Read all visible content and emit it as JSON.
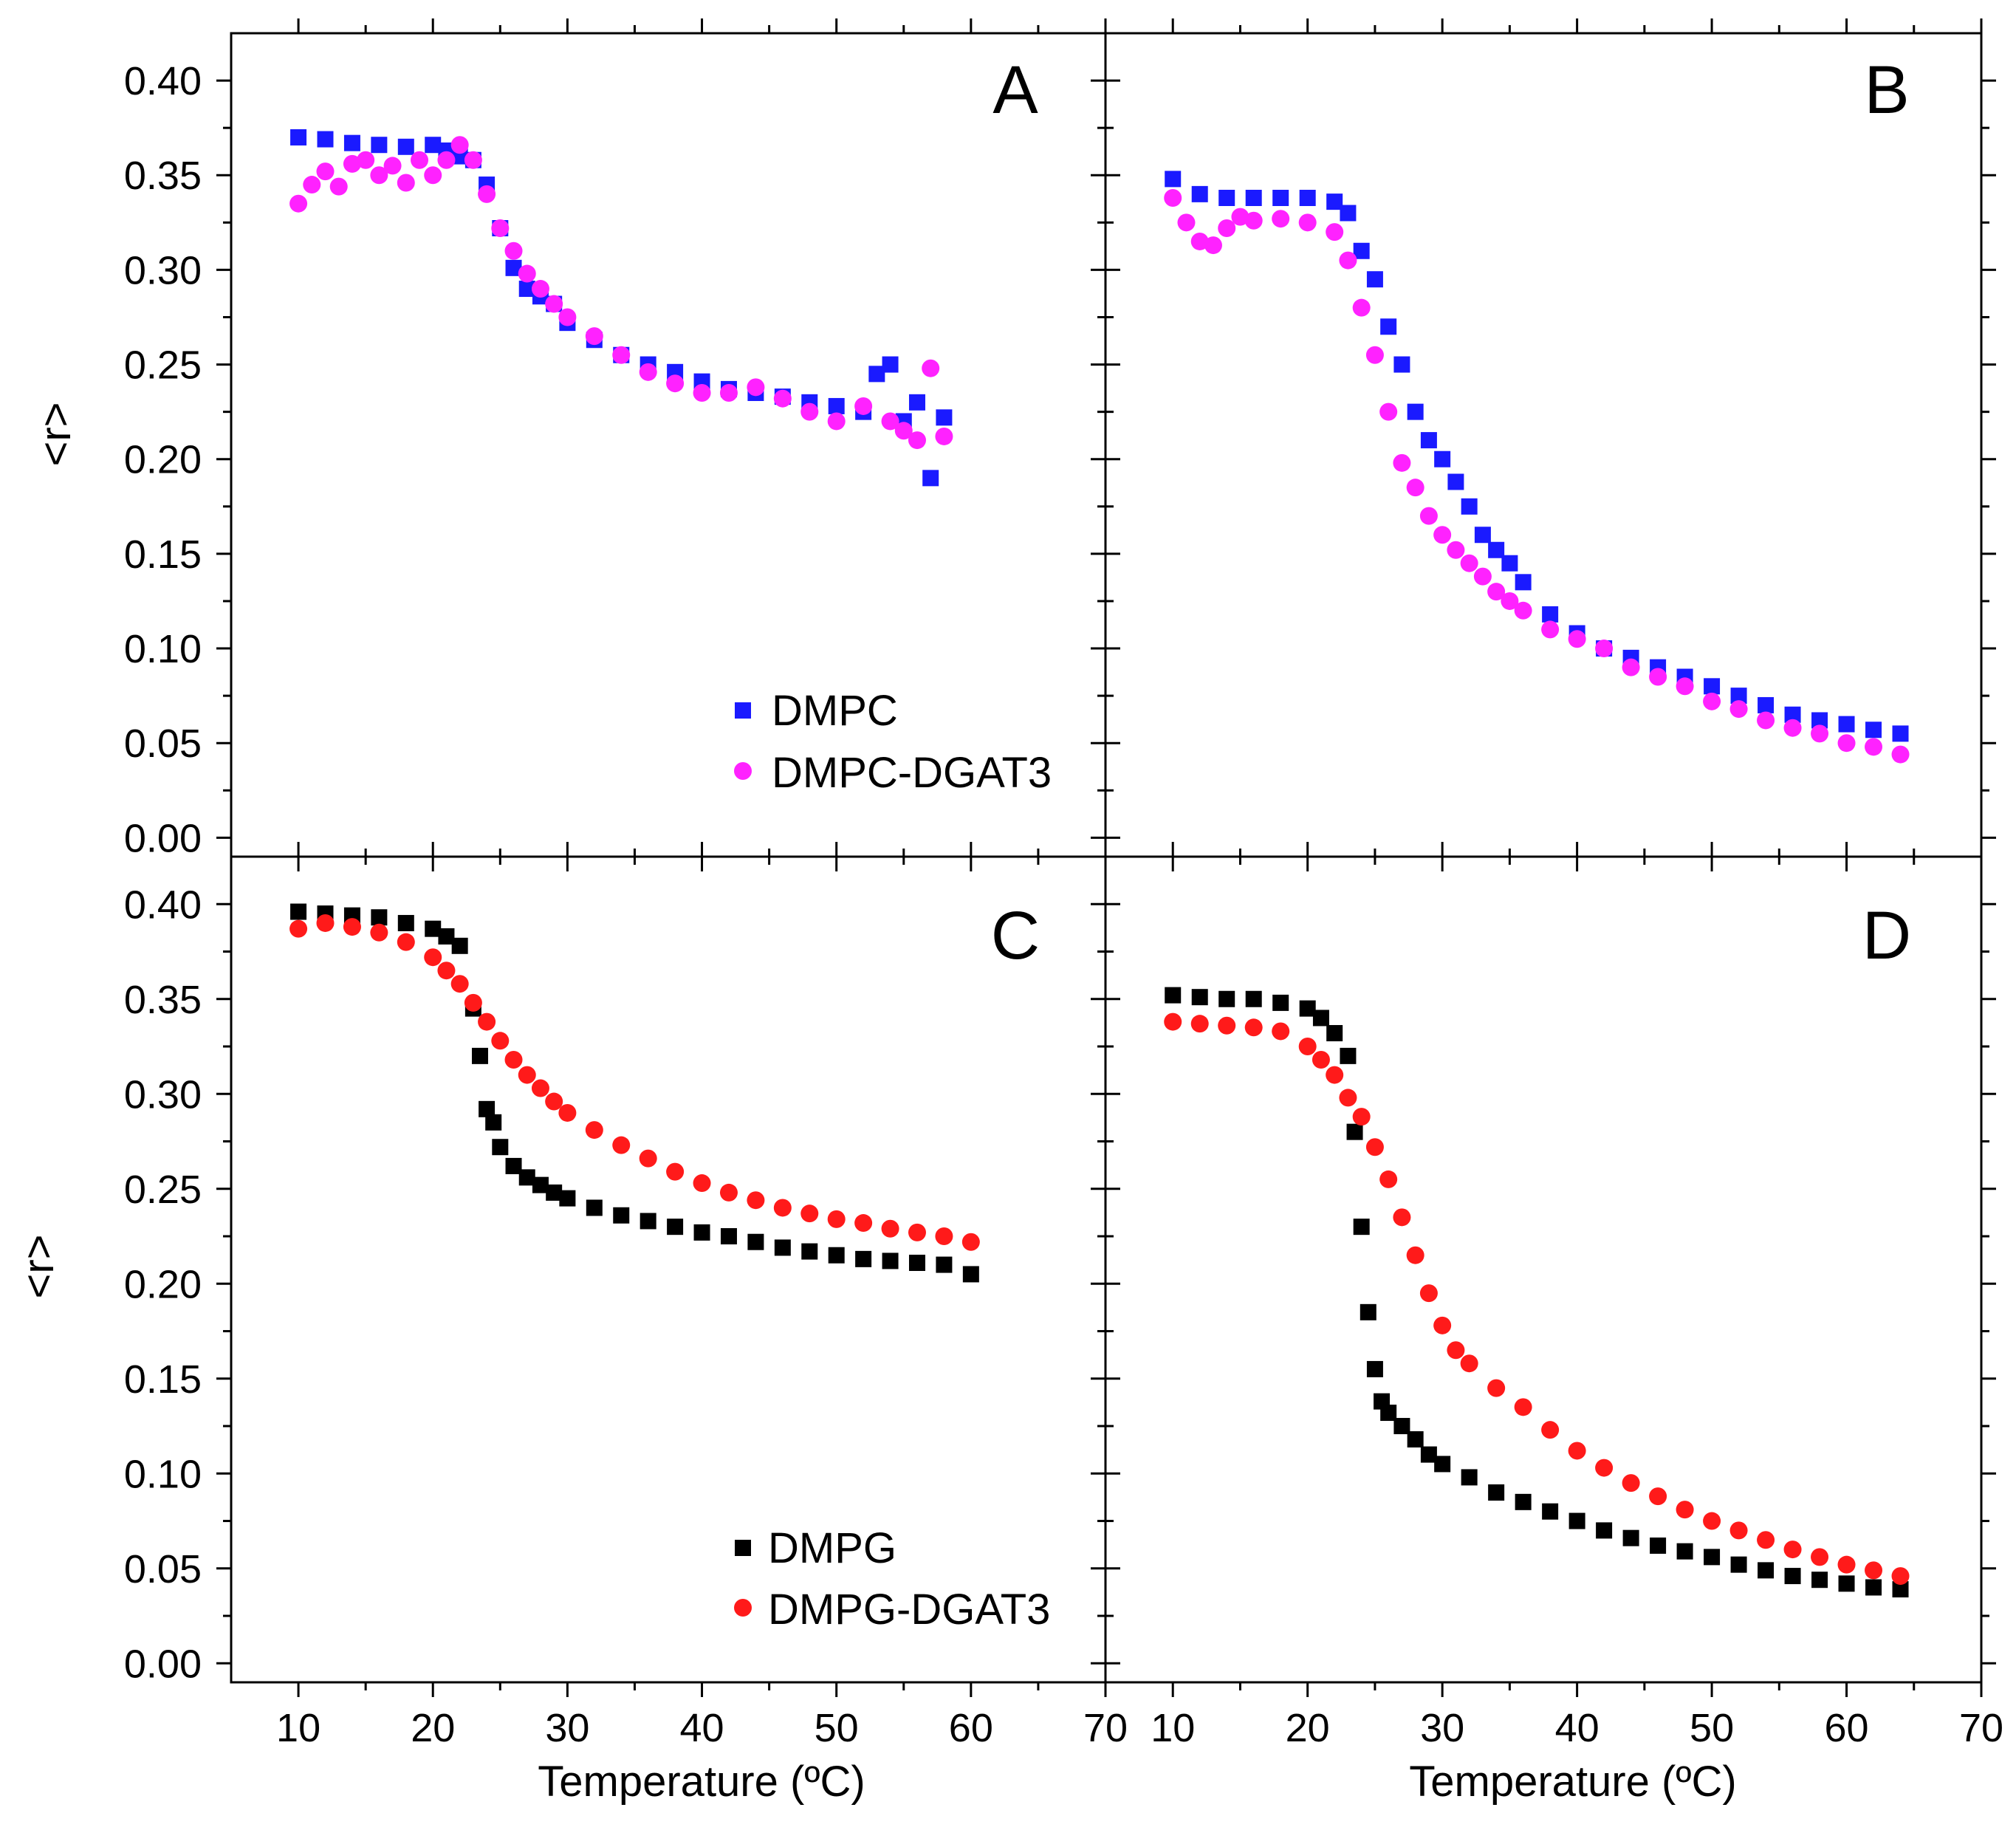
{
  "figure": {
    "x_axis_title": "Temperature (ºC)",
    "y_axis_title": "<r>",
    "x_tick_labels": [
      "10",
      "20",
      "30",
      "40",
      "50",
      "60",
      "70"
    ],
    "y_tick_labels": [
      "0.00",
      "0.05",
      "0.10",
      "0.15",
      "0.20",
      "0.25",
      "0.30",
      "0.35",
      "0.40"
    ],
    "colors": {
      "DMPC": "#1a1aff",
      "DMPC-DGAT3": "#ff22ff",
      "DMPG": "#000000",
      "DMPG-DGAT3": "#ff1a1a"
    }
  },
  "chart_data": [
    {
      "panel": "A",
      "type": "scatter",
      "xlabel": "",
      "ylabel": "<r>",
      "xlim": [
        5,
        70
      ],
      "ylim": [
        -0.01,
        0.425
      ],
      "legend": "bottom-right",
      "series": [
        {
          "name": "DMPC",
          "marker": "square",
          "color": "#1a1aff",
          "x": [
            10,
            12,
            14,
            16,
            18,
            20,
            21,
            22,
            23,
            24,
            25,
            26,
            27,
            28,
            29,
            30,
            32,
            34,
            36,
            38,
            40,
            42,
            44,
            46,
            48,
            50,
            52,
            53,
            54,
            55,
            56,
            57,
            58
          ],
          "y": [
            0.37,
            0.369,
            0.367,
            0.366,
            0.365,
            0.366,
            0.363,
            0.36,
            0.358,
            0.345,
            0.322,
            0.301,
            0.29,
            0.286,
            0.282,
            0.272,
            0.263,
            0.255,
            0.25,
            0.246,
            0.241,
            0.237,
            0.235,
            0.233,
            0.23,
            0.228,
            0.225,
            0.245,
            0.25,
            0.22,
            0.23,
            0.19,
            0.222
          ]
        },
        {
          "name": "DMPC-DGAT3",
          "marker": "circle",
          "color": "#ff22ff",
          "x": [
            10,
            11,
            12,
            13,
            14,
            15,
            16,
            17,
            18,
            19,
            20,
            21,
            22,
            23,
            24,
            25,
            26,
            27,
            28,
            29,
            30,
            32,
            34,
            36,
            38,
            40,
            42,
            44,
            46,
            48,
            50,
            52,
            54,
            55,
            56,
            57,
            58
          ],
          "y": [
            0.335,
            0.345,
            0.352,
            0.344,
            0.356,
            0.358,
            0.35,
            0.355,
            0.346,
            0.358,
            0.35,
            0.358,
            0.366,
            0.358,
            0.34,
            0.322,
            0.31,
            0.298,
            0.29,
            0.282,
            0.275,
            0.265,
            0.255,
            0.246,
            0.24,
            0.235,
            0.235,
            0.238,
            0.232,
            0.225,
            0.22,
            0.228,
            0.22,
            0.215,
            0.21,
            0.248,
            0.212
          ]
        }
      ]
    },
    {
      "panel": "B",
      "type": "scatter",
      "xlabel": "",
      "ylabel": "",
      "xlim": [
        5,
        70
      ],
      "ylim": [
        -0.01,
        0.425
      ],
      "series": [
        {
          "name": "DMPC",
          "marker": "square",
          "color": "#1a1aff",
          "x": [
            10,
            12,
            14,
            16,
            18,
            20,
            22,
            23,
            24,
            25,
            26,
            27,
            28,
            29,
            30,
            31,
            32,
            33,
            34,
            35,
            36,
            38,
            40,
            42,
            44,
            46,
            48,
            50,
            52,
            54,
            56,
            58,
            60,
            62,
            64
          ],
          "y": [
            0.348,
            0.34,
            0.338,
            0.338,
            0.338,
            0.338,
            0.336,
            0.33,
            0.31,
            0.295,
            0.27,
            0.25,
            0.225,
            0.21,
            0.2,
            0.188,
            0.175,
            0.16,
            0.152,
            0.145,
            0.135,
            0.118,
            0.108,
            0.1,
            0.095,
            0.09,
            0.085,
            0.08,
            0.075,
            0.07,
            0.065,
            0.062,
            0.06,
            0.057,
            0.055
          ]
        },
        {
          "name": "DMPC-DGAT3",
          "marker": "circle",
          "color": "#ff22ff",
          "x": [
            10,
            11,
            12,
            13,
            14,
            15,
            16,
            18,
            20,
            22,
            23,
            24,
            25,
            26,
            27,
            28,
            29,
            30,
            31,
            32,
            33,
            34,
            35,
            36,
            38,
            40,
            42,
            44,
            46,
            48,
            50,
            52,
            54,
            56,
            58,
            60,
            62,
            64
          ],
          "y": [
            0.338,
            0.325,
            0.315,
            0.313,
            0.322,
            0.328,
            0.326,
            0.327,
            0.325,
            0.32,
            0.305,
            0.28,
            0.255,
            0.225,
            0.198,
            0.185,
            0.17,
            0.16,
            0.152,
            0.145,
            0.138,
            0.13,
            0.125,
            0.12,
            0.11,
            0.105,
            0.1,
            0.09,
            0.085,
            0.08,
            0.072,
            0.068,
            0.062,
            0.058,
            0.055,
            0.05,
            0.048,
            0.044
          ]
        }
      ]
    },
    {
      "panel": "C",
      "type": "scatter",
      "xlabel": "Temperature (ºC)",
      "ylabel": "<r>",
      "xlim": [
        5,
        70
      ],
      "ylim": [
        -0.01,
        0.425
      ],
      "legend": "bottom-right",
      "series": [
        {
          "name": "DMPG",
          "marker": "square",
          "color": "#000000",
          "x": [
            10,
            12,
            14,
            16,
            18,
            20,
            21,
            22,
            23,
            23.5,
            24,
            24.5,
            25,
            26,
            27,
            28,
            29,
            30,
            32,
            34,
            36,
            38,
            40,
            42,
            44,
            46,
            48,
            50,
            52,
            54,
            56,
            58,
            60
          ],
          "y": [
            0.396,
            0.395,
            0.394,
            0.393,
            0.39,
            0.387,
            0.383,
            0.378,
            0.345,
            0.32,
            0.292,
            0.285,
            0.272,
            0.262,
            0.256,
            0.252,
            0.248,
            0.245,
            0.24,
            0.236,
            0.233,
            0.23,
            0.227,
            0.225,
            0.222,
            0.219,
            0.217,
            0.215,
            0.213,
            0.212,
            0.211,
            0.21,
            0.205
          ]
        },
        {
          "name": "DMPG-DGAT3",
          "marker": "circle",
          "color": "#ff1a1a",
          "x": [
            10,
            12,
            14,
            16,
            18,
            20,
            21,
            22,
            23,
            24,
            25,
            26,
            27,
            28,
            29,
            30,
            32,
            34,
            36,
            38,
            40,
            42,
            44,
            46,
            48,
            50,
            52,
            54,
            56,
            58,
            60
          ],
          "y": [
            0.387,
            0.39,
            0.388,
            0.385,
            0.38,
            0.372,
            0.365,
            0.358,
            0.348,
            0.338,
            0.328,
            0.318,
            0.31,
            0.303,
            0.296,
            0.29,
            0.281,
            0.273,
            0.266,
            0.259,
            0.253,
            0.248,
            0.244,
            0.24,
            0.237,
            0.234,
            0.232,
            0.229,
            0.227,
            0.225,
            0.222
          ]
        }
      ]
    },
    {
      "panel": "D",
      "type": "scatter",
      "xlabel": "Temperature (ºC)",
      "ylabel": "",
      "xlim": [
        5,
        70
      ],
      "ylim": [
        -0.01,
        0.425
      ],
      "series": [
        {
          "name": "DMPG",
          "marker": "square",
          "color": "#000000",
          "x": [
            10,
            12,
            14,
            16,
            18,
            20,
            21,
            22,
            23,
            23.5,
            24,
            24.5,
            25,
            25.5,
            26,
            27,
            28,
            29,
            30,
            32,
            34,
            36,
            38,
            40,
            42,
            44,
            46,
            48,
            50,
            52,
            54,
            56,
            58,
            60,
            62,
            64
          ],
          "y": [
            0.352,
            0.351,
            0.35,
            0.35,
            0.348,
            0.345,
            0.34,
            0.332,
            0.32,
            0.28,
            0.23,
            0.185,
            0.155,
            0.138,
            0.132,
            0.125,
            0.118,
            0.11,
            0.105,
            0.098,
            0.09,
            0.085,
            0.08,
            0.075,
            0.07,
            0.066,
            0.062,
            0.059,
            0.056,
            0.052,
            0.049,
            0.046,
            0.044,
            0.042,
            0.04,
            0.039
          ]
        },
        {
          "name": "DMPG-DGAT3",
          "marker": "circle",
          "color": "#ff1a1a",
          "x": [
            10,
            12,
            14,
            16,
            18,
            20,
            21,
            22,
            23,
            24,
            25,
            26,
            27,
            28,
            29,
            30,
            31,
            32,
            34,
            36,
            38,
            40,
            42,
            44,
            46,
            48,
            50,
            52,
            54,
            56,
            58,
            60,
            62,
            64
          ],
          "y": [
            0.338,
            0.337,
            0.336,
            0.335,
            0.333,
            0.325,
            0.318,
            0.31,
            0.298,
            0.288,
            0.272,
            0.255,
            0.235,
            0.215,
            0.195,
            0.178,
            0.165,
            0.158,
            0.145,
            0.135,
            0.123,
            0.112,
            0.103,
            0.095,
            0.088,
            0.081,
            0.075,
            0.07,
            0.065,
            0.06,
            0.056,
            0.052,
            0.049,
            0.046
          ]
        }
      ]
    }
  ]
}
